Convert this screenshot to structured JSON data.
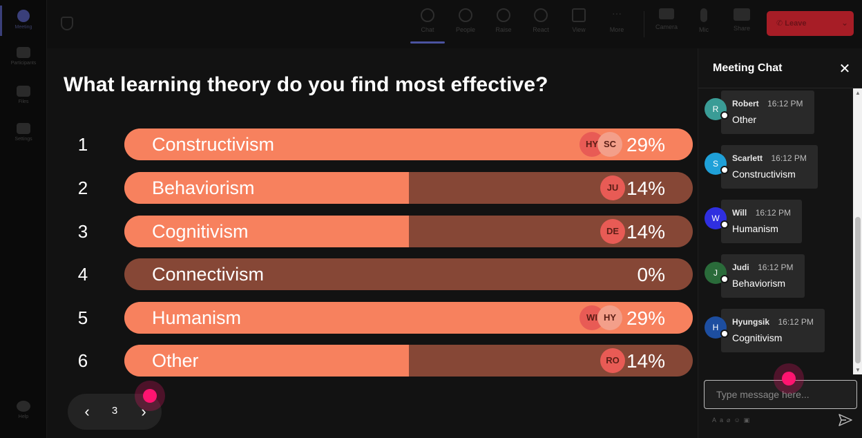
{
  "rail": {
    "items": [
      {
        "label": "Meeting",
        "icon": "meeting-icon"
      },
      {
        "label": "Participants",
        "icon": "participants-icon"
      },
      {
        "label": "Files",
        "icon": "files-icon"
      },
      {
        "label": "Settings",
        "icon": "settings-icon"
      },
      {
        "label": "Help",
        "icon": "help-icon"
      }
    ]
  },
  "toolbar": {
    "buttons": [
      {
        "label": "Chat",
        "icon": "chat-icon"
      },
      {
        "label": "People",
        "icon": "people-icon"
      },
      {
        "label": "Raise",
        "icon": "raise-hand-icon"
      },
      {
        "label": "React",
        "icon": "react-icon"
      },
      {
        "label": "View",
        "icon": "view-icon"
      },
      {
        "label": "More",
        "icon": "more-icon"
      },
      {
        "label": "Camera",
        "icon": "camera-icon"
      },
      {
        "label": "Mic",
        "icon": "mic-icon"
      },
      {
        "label": "Share",
        "icon": "share-icon"
      }
    ],
    "leave_label": "Leave"
  },
  "poll": {
    "question": "What learning theory do you find most effective?",
    "options": [
      {
        "num": "1",
        "label": "Constructivism",
        "percent": "29%",
        "fill": 1.0,
        "voters": [
          "HY",
          "SC"
        ]
      },
      {
        "num": "2",
        "label": "Behaviorism",
        "percent": "14%",
        "fill": 0.5,
        "voters": [
          "JU"
        ]
      },
      {
        "num": "3",
        "label": "Cognitivism",
        "percent": "14%",
        "fill": 0.5,
        "voters": [
          "DE"
        ]
      },
      {
        "num": "4",
        "label": "Connectivism",
        "percent": "0%",
        "fill": 0.0,
        "voters": []
      },
      {
        "num": "5",
        "label": "Humanism",
        "percent": "29%",
        "fill": 1.0,
        "voters": [
          "WI",
          "HY"
        ]
      },
      {
        "num": "6",
        "label": "Other",
        "percent": "14%",
        "fill": 0.5,
        "voters": [
          "RO"
        ]
      }
    ],
    "page": "3"
  },
  "chat": {
    "title": "Meeting Chat",
    "messages": [
      {
        "initial": "R",
        "name": "Robert",
        "time": "16:12 PM",
        "text": "Other",
        "color": "#3a9c96"
      },
      {
        "initial": "S",
        "name": "Scarlett",
        "time": "16:12 PM",
        "text": "Constructivism",
        "color": "#1fa0d8"
      },
      {
        "initial": "W",
        "name": "Will",
        "time": "16:12 PM",
        "text": "Humanism",
        "color": "#2f2fe0"
      },
      {
        "initial": "J",
        "name": "Judi",
        "time": "16:12 PM",
        "text": "Behaviorism",
        "color": "#2a6b3a"
      },
      {
        "initial": "H",
        "name": "Hyungsik",
        "time": "16:12 PM",
        "text": "Cognitivism",
        "color": "#1d4ea0"
      }
    ],
    "input_placeholder": "Type message here..."
  },
  "colors": {
    "bar_fill": "#f7815e",
    "bar_track": "#864736",
    "leave": "#a71d26",
    "click_indicator": "#ff1470"
  }
}
